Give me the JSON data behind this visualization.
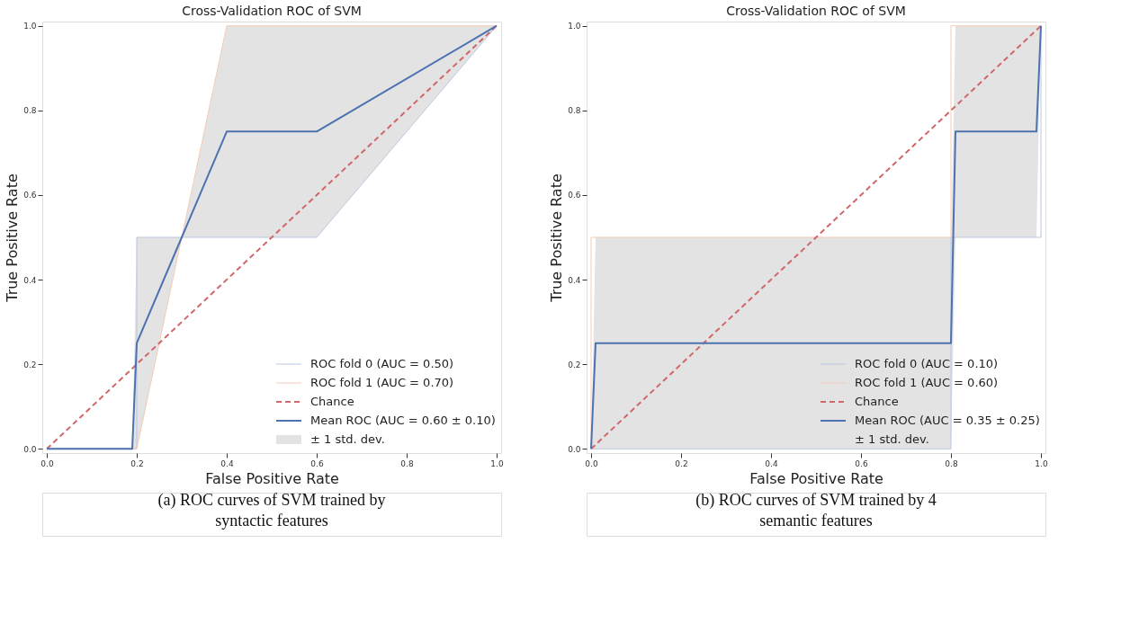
{
  "chart_data": [
    {
      "type": "line",
      "title": "Cross-Validation ROC of SVM",
      "xlabel": "False Positive Rate",
      "ylabel": "True Positive Rate",
      "xlim": [
        -0.01,
        1.01
      ],
      "ylim": [
        -0.01,
        1.01
      ],
      "xticks": [
        {
          "value": 0,
          "label": "0.0"
        },
        {
          "value": 0.2,
          "label": "0.2"
        },
        {
          "value": 0.4,
          "label": "0.4"
        },
        {
          "value": 0.6,
          "label": "0.6"
        },
        {
          "value": 0.8,
          "label": "0.8"
        },
        {
          "value": 1,
          "label": "1.0"
        }
      ],
      "yticks": [
        {
          "value": 0,
          "label": "0.0"
        },
        {
          "value": 0.2,
          "label": "0.2"
        },
        {
          "value": 0.4,
          "label": "0.4"
        },
        {
          "value": 0.6,
          "label": "0.6"
        },
        {
          "value": 0.8,
          "label": "0.8"
        },
        {
          "value": 1,
          "label": "1.0"
        }
      ],
      "grid": false,
      "legend": "bottom right",
      "series": [
        {
          "name": "ROC fold 0 (AUC = 0.50)",
          "color": "#b9c7e0",
          "x": [
            0,
            0.2,
            0.2,
            0.6,
            1
          ],
          "values": [
            0,
            0,
            0.5,
            0.5,
            1
          ]
        },
        {
          "name": "ROC fold 1 (AUC = 0.70)",
          "color": "#f3cbb4",
          "x": [
            0,
            0.2,
            0.4,
            1
          ],
          "values": [
            0,
            0,
            1,
            1
          ]
        },
        {
          "name": "Chance",
          "color": "#d0676a",
          "line_style": "dashed",
          "x": [
            0,
            1
          ],
          "values": [
            0,
            1
          ]
        },
        {
          "name": "Mean ROC (AUC = 0.60 ± 0.10)",
          "color": "#4c72b0",
          "x": [
            0,
            0.19,
            0.2,
            0.3,
            0.4,
            0.6,
            1
          ],
          "values": [
            0,
            0,
            0.25,
            0.5,
            0.75,
            0.75,
            1
          ],
          "lower": [
            0,
            0,
            0,
            0.5,
            0.5,
            0.5,
            1
          ],
          "upper": [
            0,
            0,
            0.5,
            0.5,
            1,
            1,
            1
          ]
        }
      ],
      "annotations": [
        "(a) ROC curves of SVM trained by syntactic features",
        "± 1 std. dev."
      ]
    },
    {
      "type": "line",
      "title": "Cross-Validation ROC of SVM",
      "xlabel": "False Positive Rate",
      "ylabel": "True Positive Rate",
      "xlim": [
        -0.01,
        1.01
      ],
      "ylim": [
        -0.01,
        1.01
      ],
      "xticks": [
        {
          "value": 0,
          "label": "0.0"
        },
        {
          "value": 0.2,
          "label": "0.2"
        },
        {
          "value": 0.4,
          "label": "0.4"
        },
        {
          "value": 0.6,
          "label": "0.6"
        },
        {
          "value": 0.8,
          "label": "0.8"
        },
        {
          "value": 1,
          "label": "1.0"
        }
      ],
      "yticks": [
        {
          "value": 0,
          "label": "0.0"
        },
        {
          "value": 0.2,
          "label": "0.2"
        },
        {
          "value": 0.4,
          "label": "0.4"
        },
        {
          "value": 0.6,
          "label": "0.6"
        },
        {
          "value": 0.8,
          "label": "0.8"
        },
        {
          "value": 1,
          "label": "1.0"
        }
      ],
      "grid": false,
      "legend": "bottom right",
      "series": [
        {
          "name": "ROC fold 0 (AUC = 0.10)",
          "color": "#b9c7e0",
          "x": [
            0,
            0.8,
            0.8,
            1,
            1
          ],
          "values": [
            0,
            0,
            0.5,
            0.5,
            1
          ]
        },
        {
          "name": "ROC fold 1 (AUC = 0.60)",
          "color": "#f3cbb4",
          "x": [
            0,
            0,
            0.8,
            0.8,
            1
          ],
          "values": [
            0,
            0.5,
            0.5,
            1,
            1
          ]
        },
        {
          "name": "Chance",
          "color": "#d0676a",
          "line_style": "dashed",
          "x": [
            0,
            1
          ],
          "values": [
            0,
            1
          ]
        },
        {
          "name": "Mean ROC (AUC = 0.35 ± 0.25)",
          "color": "#4c72b0",
          "x": [
            0,
            0.01,
            0.8,
            0.81,
            0.99,
            1
          ],
          "values": [
            0,
            0.25,
            0.25,
            0.75,
            0.75,
            1
          ],
          "lower": [
            0,
            0,
            0,
            0.5,
            0.5,
            1
          ],
          "upper": [
            0,
            0.5,
            0.5,
            1,
            1,
            1
          ]
        }
      ],
      "annotations": [
        "(b) ROC curves of SVM trained by 4 semantic features",
        "± 1 std. dev."
      ]
    }
  ]
}
